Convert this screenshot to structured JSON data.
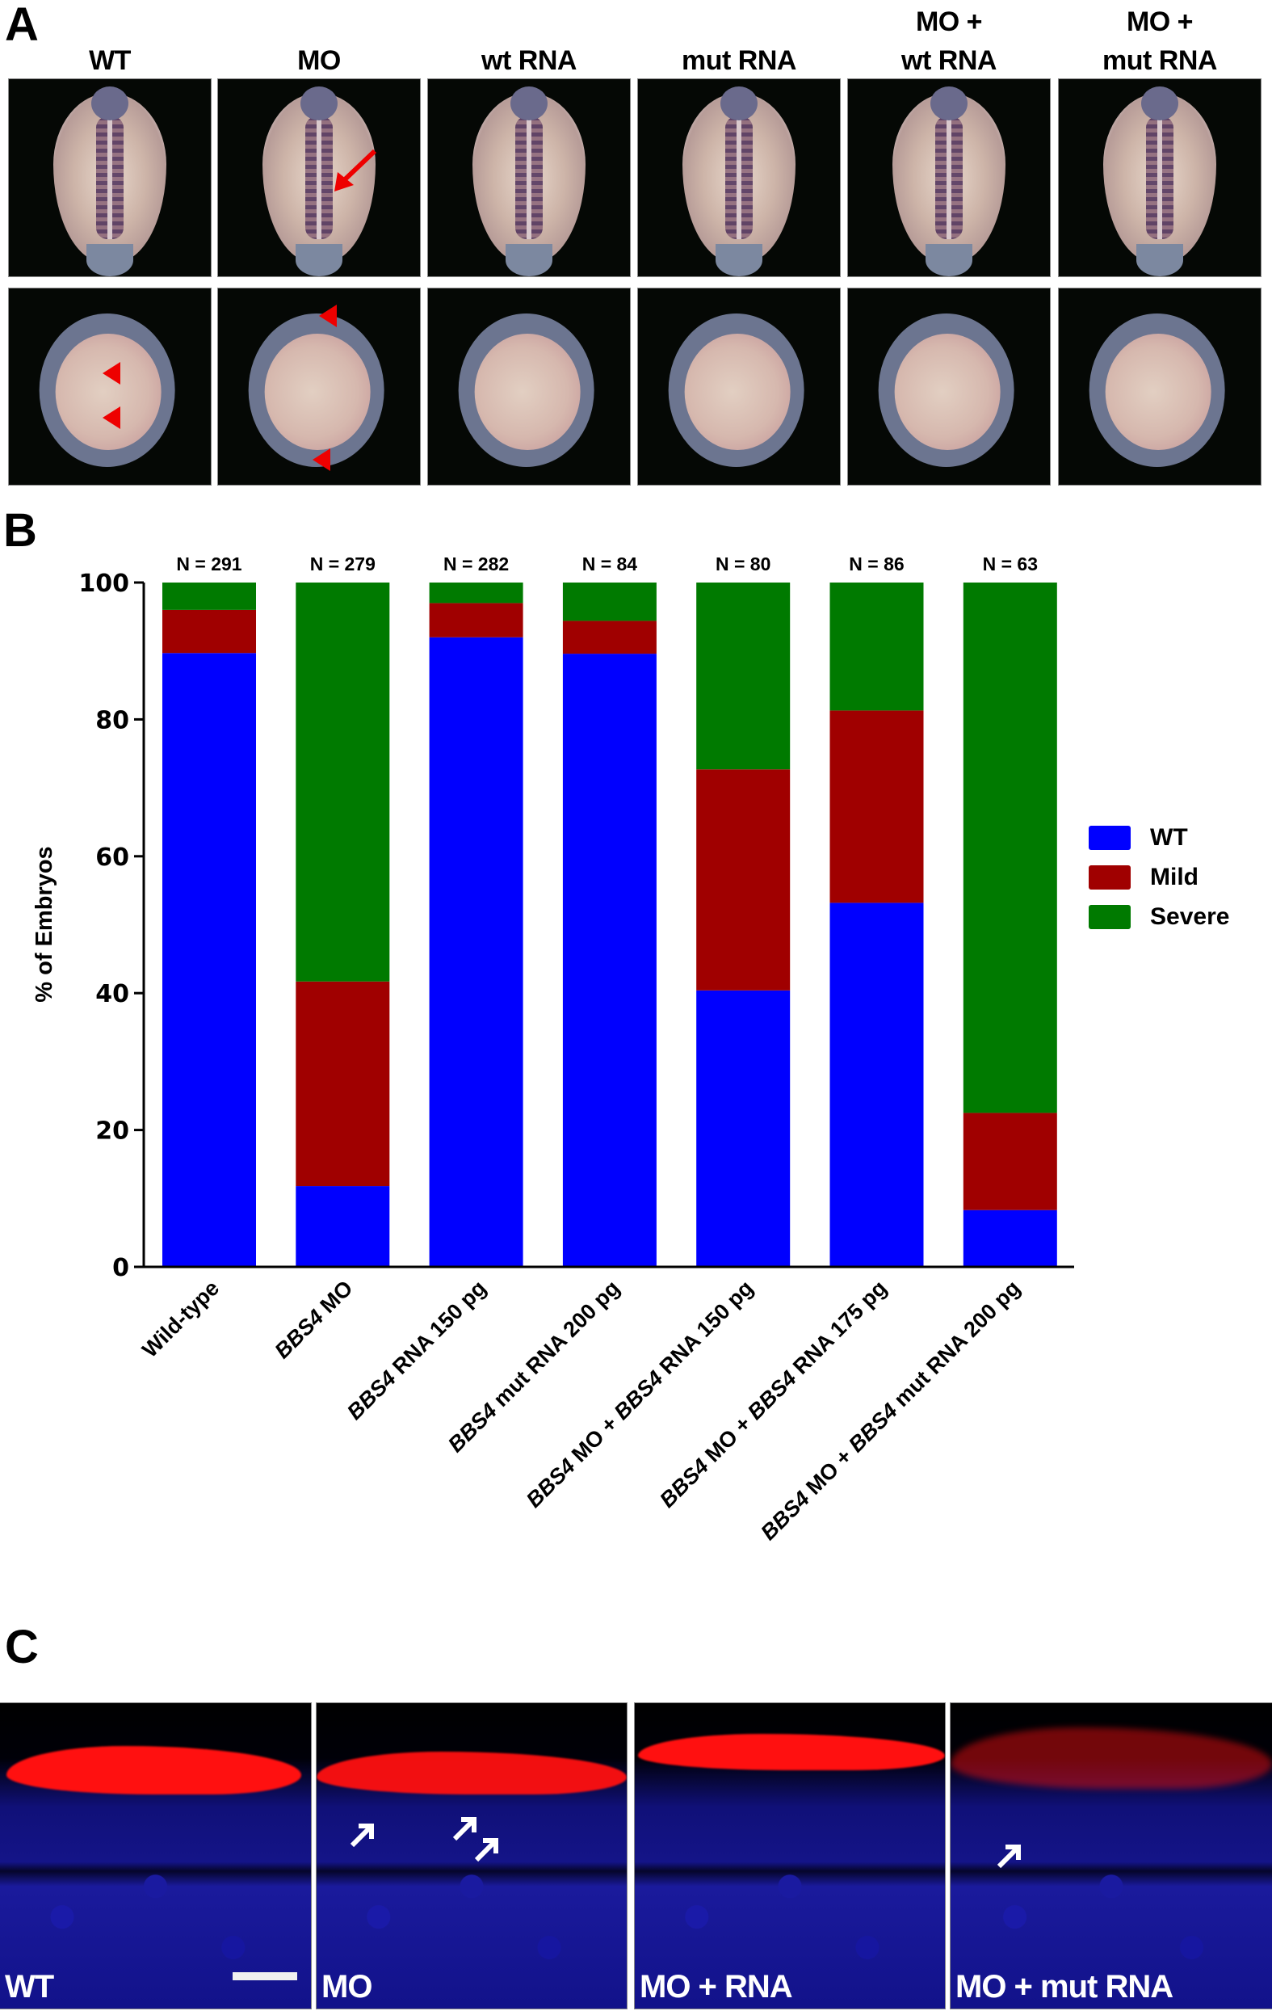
{
  "panels": {
    "a": {
      "letter": "A",
      "columns": [
        {
          "label_line1": "",
          "label_line2": "WT"
        },
        {
          "label_line1": "",
          "label_line2": "MO"
        },
        {
          "label_line1": "",
          "label_line2": "wt RNA"
        },
        {
          "label_line1": "",
          "label_line2": "mut RNA"
        },
        {
          "label_line1": "MO +",
          "label_line2": "wt RNA"
        },
        {
          "label_line1": "MO +",
          "label_line2": "mut RNA"
        }
      ],
      "rows": [
        "dorsal view",
        "lateral view"
      ],
      "annotations": {
        "arrow_color": "#ee0000",
        "arrow_in": "MO dorsal",
        "arrowheads_in": [
          "WT lateral (2)",
          "MO lateral (2)"
        ]
      }
    },
    "b": {
      "letter": "B"
    },
    "c": {
      "letter": "C",
      "images": [
        {
          "label": "WT",
          "scale_bar": true,
          "arrows": 0
        },
        {
          "label": "MO",
          "scale_bar": false,
          "arrows": 3
        },
        {
          "label": "MO + RNA",
          "scale_bar": false,
          "arrows": 0
        },
        {
          "label": "MO + mut RNA",
          "scale_bar": false,
          "arrows": 1
        }
      ]
    }
  },
  "chart_data": {
    "type": "bar",
    "stacked": true,
    "title": "",
    "xlabel": "",
    "ylabel": "% of Embryos",
    "ylim": [
      0,
      100
    ],
    "yticks": [
      0,
      20,
      40,
      60,
      80,
      100
    ],
    "grid": false,
    "legend_position": "right",
    "categories": [
      {
        "prefix": "",
        "italic": "",
        "suffix": "Wild-type"
      },
      {
        "prefix": "",
        "italic": "BBS4",
        "suffix": " MO"
      },
      {
        "prefix": "",
        "italic": "BBS4",
        "suffix": " RNA 150 pg"
      },
      {
        "prefix": "",
        "italic": "BBS4",
        "suffix": " mut RNA 200 pg"
      },
      {
        "prefix": "",
        "italic": "BBS4",
        "suffix": " MO + ",
        "italic2": "BBS4",
        "suffix2": " RNA 150 pg"
      },
      {
        "prefix": "",
        "italic": "BBS4",
        "suffix": " MO + ",
        "italic2": "BBS4",
        "suffix2": " RNA 175 pg"
      },
      {
        "prefix": "",
        "italic": "BBS4",
        "suffix": " MO + ",
        "italic2": "BBS4",
        "suffix2": " mut RNA 200 pg"
      }
    ],
    "n_labels": [
      "N = 291",
      "N = 279",
      "N = 282",
      "N = 84",
      "N = 80",
      "N = 86",
      "N = 63"
    ],
    "series": [
      {
        "name": "WT",
        "color": "#0000ff",
        "values": [
          89.7,
          11.8,
          92.0,
          89.6,
          40.4,
          53.2,
          8.3
        ]
      },
      {
        "name": "Mild",
        "color": "#a00000",
        "values": [
          6.3,
          29.9,
          5.0,
          4.8,
          32.3,
          28.1,
          14.2
        ]
      },
      {
        "name": "Severe",
        "color": "#007a00",
        "values": [
          4.0,
          58.3,
          3.0,
          5.6,
          27.3,
          18.7,
          77.5
        ]
      }
    ]
  }
}
